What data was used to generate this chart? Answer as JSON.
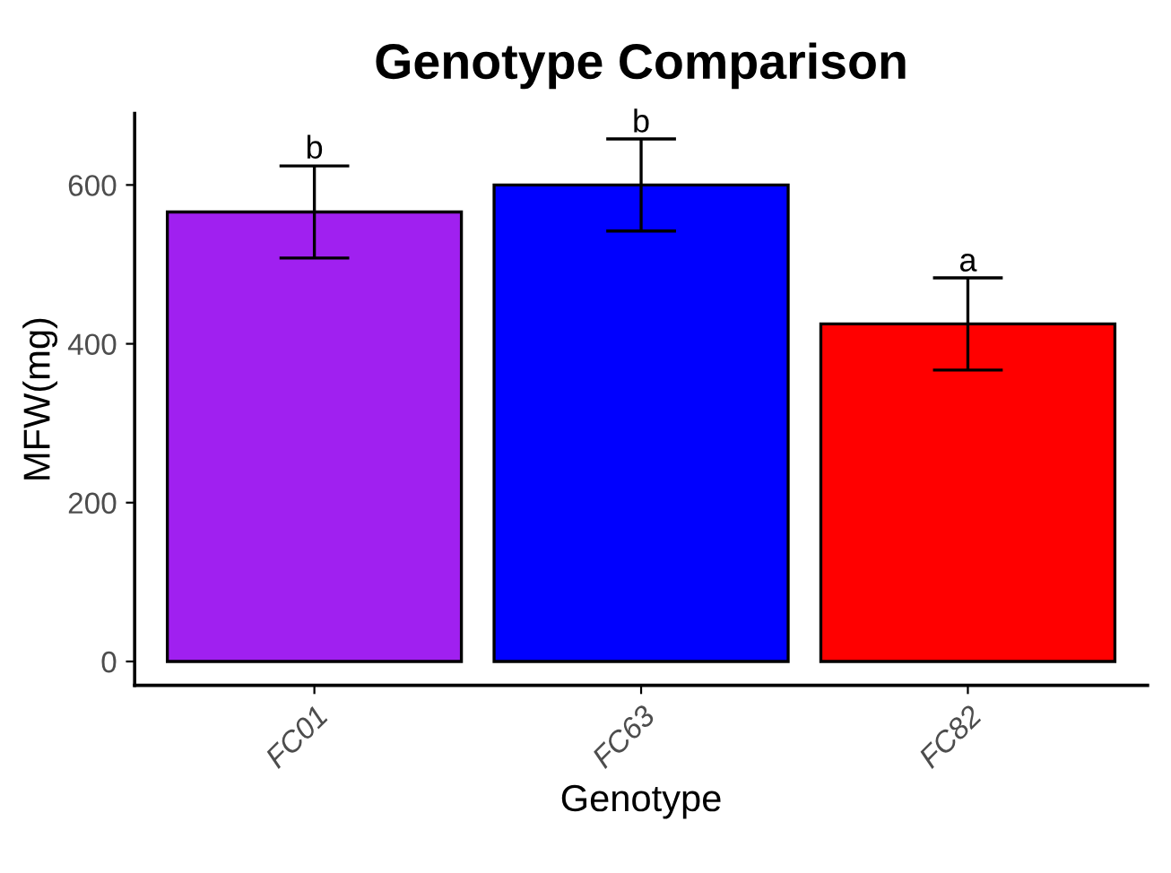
{
  "chart_data": {
    "type": "bar",
    "title": "Genotype Comparison",
    "xlabel": "Genotype",
    "ylabel": "MFW(mg)",
    "categories": [
      "FC01",
      "FC63",
      "FC82"
    ],
    "values": [
      566,
      600,
      425
    ],
    "colors": [
      "#a020f0",
      "#0000ff",
      "#ff0000"
    ],
    "errors": [
      58,
      58,
      58
    ],
    "ylim": [
      -30,
      690
    ],
    "yticks": [
      0,
      200,
      400,
      600
    ],
    "grid": false,
    "legend": false,
    "annotations": [
      {
        "text": "b",
        "x": "FC01",
        "y": 625
      },
      {
        "text": "b",
        "x": "FC63",
        "y": 658
      },
      {
        "text": "a",
        "x": "FC82",
        "y": 483
      }
    ]
  }
}
